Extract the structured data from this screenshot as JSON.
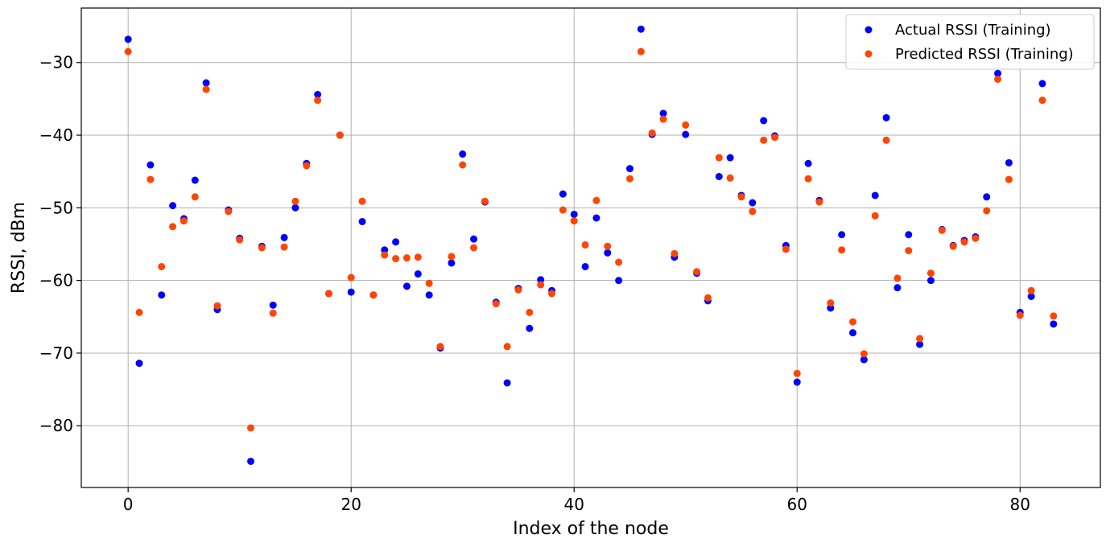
{
  "chart_data": {
    "type": "scatter",
    "title": "",
    "xlabel": "Index of the node",
    "ylabel": "RSSI, dBm",
    "xlim": [
      -4.2,
      87.2
    ],
    "ylim": [
      -88.5,
      -22.5
    ],
    "xticks": [
      0,
      20,
      40,
      60,
      80
    ],
    "yticks": [
      -80,
      -70,
      -60,
      -50,
      -40,
      -30
    ],
    "xtick_labels": [
      "0",
      "20",
      "40",
      "60",
      "80"
    ],
    "ytick_labels": [
      "−80",
      "−70",
      "−60",
      "−50",
      "−40",
      "−30"
    ],
    "grid": true,
    "legend_position": "top-right",
    "x": [
      0,
      1,
      2,
      3,
      4,
      5,
      6,
      7,
      8,
      9,
      10,
      11,
      12,
      13,
      14,
      15,
      16,
      17,
      18,
      19,
      20,
      21,
      22,
      23,
      24,
      25,
      26,
      27,
      28,
      29,
      30,
      31,
      32,
      33,
      34,
      35,
      36,
      37,
      38,
      39,
      40,
      41,
      42,
      43,
      44,
      45,
      46,
      47,
      48,
      49,
      50,
      51,
      52,
      53,
      54,
      55,
      56,
      57,
      58,
      59,
      60,
      61,
      62,
      63,
      64,
      65,
      66,
      67,
      68,
      69,
      70,
      71,
      72,
      73,
      74,
      75,
      76,
      77,
      78,
      79,
      80,
      81,
      82,
      83
    ],
    "series": [
      {
        "name": "Actual RSSI (Training)",
        "color": "#0000ff",
        "values": [
          -26.8,
          -71.4,
          -44.1,
          -62.0,
          -49.7,
          -51.5,
          -46.2,
          -32.8,
          -64.0,
          -50.3,
          -54.2,
          -84.9,
          -55.3,
          -63.4,
          -54.1,
          -50.0,
          -43.9,
          -34.4,
          -61.8,
          -40.0,
          -61.6,
          -51.9,
          -62.0,
          -55.8,
          -54.7,
          -60.8,
          -59.1,
          -62.0,
          -69.3,
          -57.6,
          -42.6,
          -54.3,
          -49.2,
          -63.0,
          -74.1,
          -61.1,
          -66.6,
          -59.9,
          -61.4,
          -48.1,
          -50.9,
          -58.1,
          -51.4,
          -56.2,
          -60.0,
          -44.6,
          -25.4,
          -39.9,
          -37.0,
          -56.8,
          -39.9,
          -59.0,
          -62.8,
          -45.7,
          -43.1,
          -48.3,
          -49.3,
          -38.0,
          -40.1,
          -55.2,
          -74.0,
          -43.9,
          -49.0,
          -63.8,
          -53.7,
          -67.2,
          -70.9,
          -48.3,
          -37.6,
          -61.0,
          -53.7,
          -68.8,
          -60.0,
          -53.0,
          -55.2,
          -54.5,
          -54.0,
          -48.5,
          -31.5,
          -43.8,
          -64.4,
          -62.2,
          -32.9,
          -66.0
        ]
      },
      {
        "name": "Predicted RSSI (Training)",
        "color": "#ff4500",
        "values": [
          -28.5,
          -64.4,
          -46.1,
          -58.1,
          -52.6,
          -51.8,
          -48.5,
          -33.7,
          -63.5,
          -50.5,
          -54.4,
          -80.3,
          -55.5,
          -64.5,
          -55.4,
          -49.1,
          -44.2,
          -35.2,
          -61.8,
          -40.0,
          -59.6,
          -49.1,
          -62.0,
          -56.5,
          -57.0,
          -56.9,
          -56.8,
          -60.4,
          -69.1,
          -56.7,
          -44.1,
          -55.5,
          -49.1,
          -63.2,
          -69.1,
          -61.3,
          -64.4,
          -60.6,
          -61.8,
          -50.3,
          -51.8,
          -55.1,
          -49.0,
          -55.3,
          -57.5,
          -46.0,
          -28.5,
          -39.7,
          -37.8,
          -56.3,
          -38.6,
          -58.8,
          -62.4,
          -43.1,
          -45.9,
          -48.5,
          -50.5,
          -40.7,
          -40.3,
          -55.7,
          -72.8,
          -46.0,
          -49.2,
          -63.1,
          -55.8,
          -65.7,
          -70.1,
          -51.1,
          -40.7,
          -59.7,
          -55.9,
          -68.0,
          -59.0,
          -53.1,
          -55.3,
          -54.7,
          -54.2,
          -50.4,
          -32.3,
          -46.1,
          -64.8,
          -61.4,
          -35.2,
          -64.9
        ]
      }
    ]
  }
}
